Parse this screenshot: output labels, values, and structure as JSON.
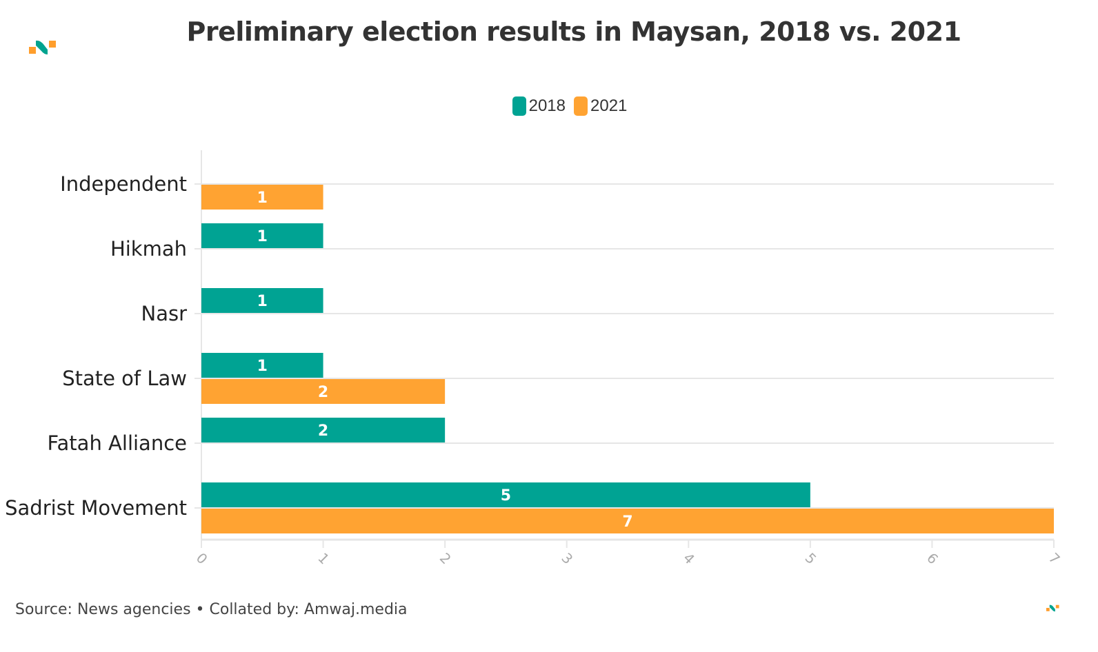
{
  "header": {
    "title": "Preliminary election results in Maysan, 2018 vs. 2021"
  },
  "footer": {
    "source": "Source: News agencies • Collated by: Amwaj.media"
  },
  "logo": {
    "icon": "amwaj-logo-icon",
    "colors": {
      "orange": "#ff9e2c",
      "teal": "#00a38f"
    }
  },
  "legend": [
    {
      "label": "2018",
      "color": "#00a393"
    },
    {
      "label": "2021",
      "color": "#ffa332"
    }
  ],
  "chart_data": {
    "type": "bar",
    "orientation": "horizontal",
    "title": "Preliminary election results in Maysan, 2018 vs. 2021",
    "xlabel": "",
    "ylabel": "",
    "xlim": [
      0,
      7
    ],
    "x_ticks": [
      "0",
      "1",
      "2",
      "3",
      "4",
      "5",
      "6",
      "7"
    ],
    "grid": true,
    "legend_position": "top-center",
    "categories": [
      "Independent",
      "Hikmah",
      "Nasr",
      "State of Law",
      "Fatah Alliance",
      "Sadrist Movement"
    ],
    "series": [
      {
        "name": "2018",
        "color": "#00a393",
        "values": [
          null,
          1,
          1,
          1,
          2,
          5
        ]
      },
      {
        "name": "2021",
        "color": "#ffa332",
        "values": [
          1,
          null,
          null,
          2,
          null,
          7
        ]
      }
    ]
  }
}
